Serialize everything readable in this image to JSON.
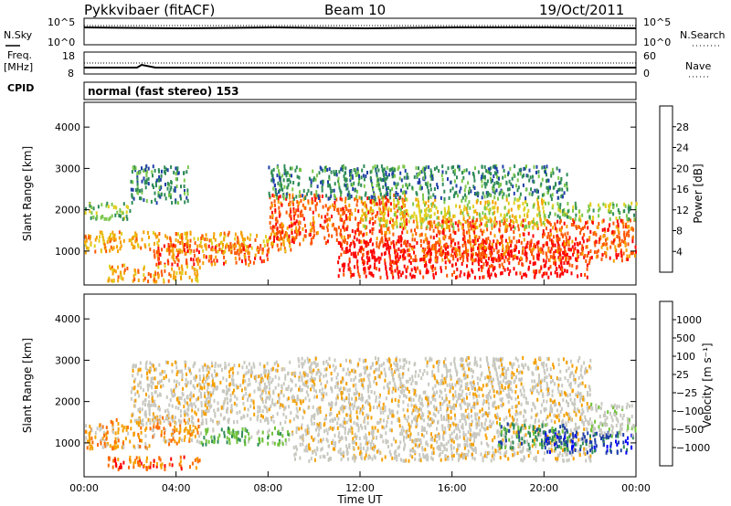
{
  "header": {
    "station": "Pykkvibaer (fitACF)",
    "beam": "Beam 10",
    "date": "19/Oct/2011"
  },
  "top_panels": {
    "nsky_label": "N.Sky",
    "nsearch_label": "N.Search",
    "freq_label_1": "Freq.",
    "freq_label_2": "[MHz]",
    "nave_label": "Nave",
    "cpid_label": "CPID",
    "cpid_text": "normal (fast stereo) 153",
    "noise_left_ticks": [
      "10^5",
      "10^0"
    ],
    "noise_right_ticks": [
      "10^5",
      "10^0"
    ],
    "freq_left_ticks": [
      "18",
      "8"
    ],
    "nave_right_ticks": [
      "60",
      "0"
    ]
  },
  "chart_data": [
    {
      "type": "heatmap",
      "panel": "power",
      "ylabel": "Slant Range [km]",
      "ylim": [
        180,
        4600
      ],
      "yticks": [
        1000,
        2000,
        3000,
        4000
      ],
      "xlim": [
        0,
        24
      ],
      "colorbar": {
        "label": "Power [dB]",
        "ticks": [
          "28",
          "24",
          "20",
          "16",
          "12",
          "8",
          "4"
        ],
        "colors": [
          "#0000ff",
          "#1f3fa8",
          "#2e8b57",
          "#7bc74a",
          "#e0d020",
          "#f5a000",
          "#ff5500",
          "#ff0000"
        ]
      },
      "bands": [
        {
          "x": [
            0,
            9
          ],
          "y": [
            1000,
            1500
          ],
          "level": 5
        },
        {
          "x": [
            0,
            2
          ],
          "y": [
            1800,
            2200
          ],
          "level": 3
        },
        {
          "x": [
            2,
            4.5
          ],
          "y": [
            2200,
            3100
          ],
          "level": 2
        },
        {
          "x": [
            3,
            8
          ],
          "y": [
            700,
            1200
          ],
          "level": 6
        },
        {
          "x": [
            1,
            5
          ],
          "y": [
            300,
            700
          ],
          "level": 5
        },
        {
          "x": [
            8,
            14
          ],
          "y": [
            1200,
            2400
          ],
          "level": 6
        },
        {
          "x": [
            11,
            22
          ],
          "y": [
            400,
            1300
          ],
          "level": 7
        },
        {
          "x": [
            14,
            24
          ],
          "y": [
            800,
            1800
          ],
          "level": 6
        },
        {
          "x": [
            12,
            20
          ],
          "y": [
            1600,
            2300
          ],
          "level": 4
        },
        {
          "x": [
            20,
            24
          ],
          "y": [
            1800,
            2200
          ],
          "level": 3
        },
        {
          "x": [
            8,
            21
          ],
          "y": [
            2300,
            3100
          ],
          "level": 2
        }
      ]
    },
    {
      "type": "heatmap",
      "panel": "velocity",
      "ylabel": "Slant Range [km]",
      "ylim": [
        180,
        4600
      ],
      "yticks": [
        1000,
        2000,
        3000,
        4000
      ],
      "xlim": [
        0,
        24
      ],
      "xticks": [
        "00:00",
        "04:00",
        "08:00",
        "12:00",
        "16:00",
        "20:00",
        "00:00"
      ],
      "xlabel": "Time UT",
      "colorbar": {
        "label": "Velocity [m s⁻¹]",
        "ticks": [
          "1000",
          "500",
          "100",
          "25",
          "−25",
          "−100",
          "−500",
          "−1000"
        ],
        "colors": [
          "#ff0000",
          "#ff6a00",
          "#f5a000",
          "#c8c8c0",
          "#c8c8c0",
          "#6fc23a",
          "#2e8b57",
          "#1f3fa8",
          "#0000ff"
        ]
      },
      "bands": [
        {
          "x": [
            0,
            3
          ],
          "y": [
            900,
            1600
          ],
          "level": 2
        },
        {
          "x": [
            3,
            5
          ],
          "y": [
            1000,
            1700
          ],
          "level": 2
        },
        {
          "x": [
            1,
            5
          ],
          "y": [
            400,
            700
          ],
          "level": 1
        },
        {
          "x": [
            2,
            9
          ],
          "y": [
            1500,
            3000
          ],
          "level": 3
        },
        {
          "x": [
            5,
            9
          ],
          "y": [
            1000,
            1400
          ],
          "level": 5
        },
        {
          "x": [
            9,
            22
          ],
          "y": [
            600,
            2300
          ],
          "level": 3
        },
        {
          "x": [
            18,
            21
          ],
          "y": [
            900,
            1500
          ],
          "level": 6
        },
        {
          "x": [
            20,
            24
          ],
          "y": [
            800,
            1300
          ],
          "level": 7
        },
        {
          "x": [
            22,
            24
          ],
          "y": [
            1200,
            2000
          ],
          "level": 4
        },
        {
          "x": [
            9,
            22
          ],
          "y": [
            2300,
            3100
          ],
          "level": 3
        }
      ]
    }
  ]
}
